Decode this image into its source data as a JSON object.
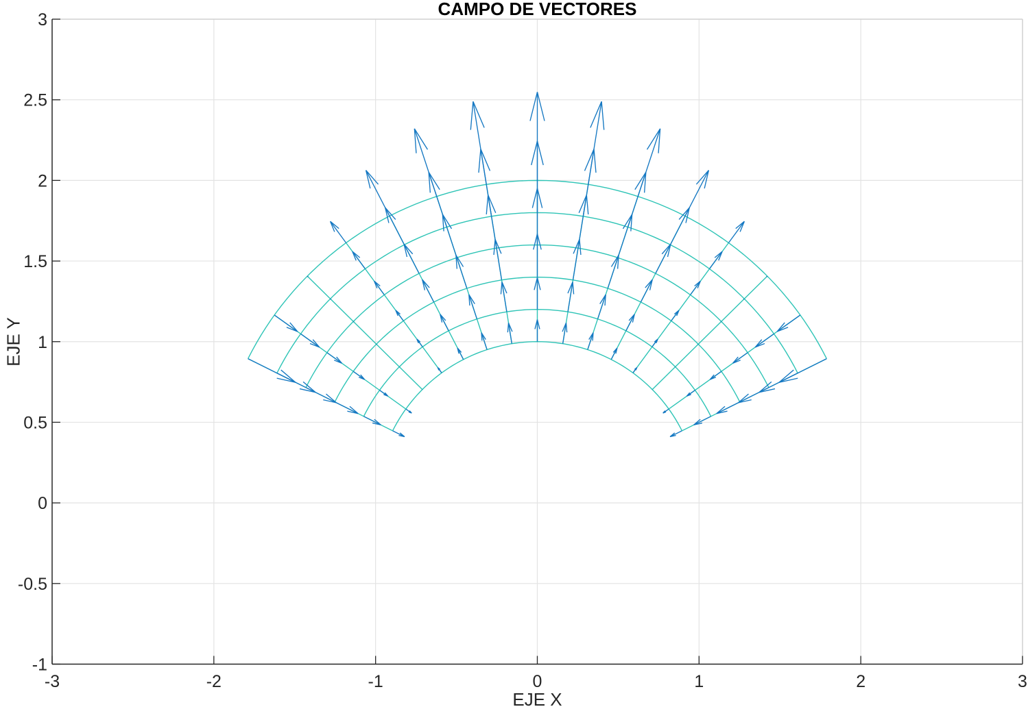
{
  "window": {
    "background": "#FFFFFF"
  },
  "chart_data": {
    "type": "quiver",
    "title": "CAMPO DE VECTORES",
    "xlabel": "EJE X",
    "ylabel": "EJE Y",
    "xlim": [
      -3,
      3
    ],
    "ylim": [
      -1,
      3
    ],
    "xticks": [
      -3,
      -2,
      -1,
      0,
      1,
      2,
      3
    ],
    "xtick_labels": [
      "-3",
      "-2",
      "-1",
      "0",
      "1",
      "2",
      "3"
    ],
    "yticks": [
      -1,
      -0.5,
      0,
      0.5,
      1,
      1.5,
      2,
      2.5,
      3
    ],
    "ytick_labels": [
      "-1",
      "-0.5",
      "0",
      "0.5",
      "1",
      "1.5",
      "2",
      "2.5",
      "3"
    ],
    "grid": true,
    "legend": "none",
    "mesh": {
      "type": "polar_grid",
      "r_min": 1.0,
      "r_max": 2.0,
      "r_lines": 6,
      "r_values": [
        1.0,
        1.2,
        1.4,
        1.6,
        1.8,
        2.0
      ],
      "theta_start_deg": 26.565,
      "theta_end_deg": 153.435,
      "theta_lines": 15,
      "color": "#2EC4B6"
    },
    "quiver": {
      "description": "radial arrow at every mesh node (6 radii x 15 angles = 90 arrows); positive = outward, negative = inward",
      "node_x": "r*cos(theta)",
      "node_y": "r*sin(theta)",
      "display_length_formula": "L = length_scale * r^2 * (-cos(2*theta))",
      "length_scale": 0.137,
      "color": "#1578C2"
    },
    "colors": {
      "axis": "#262626",
      "grid": "#E3E3E3",
      "box_top_right": "#CCCCCC",
      "tick_text": "#262626",
      "title_text": "#000000"
    }
  }
}
